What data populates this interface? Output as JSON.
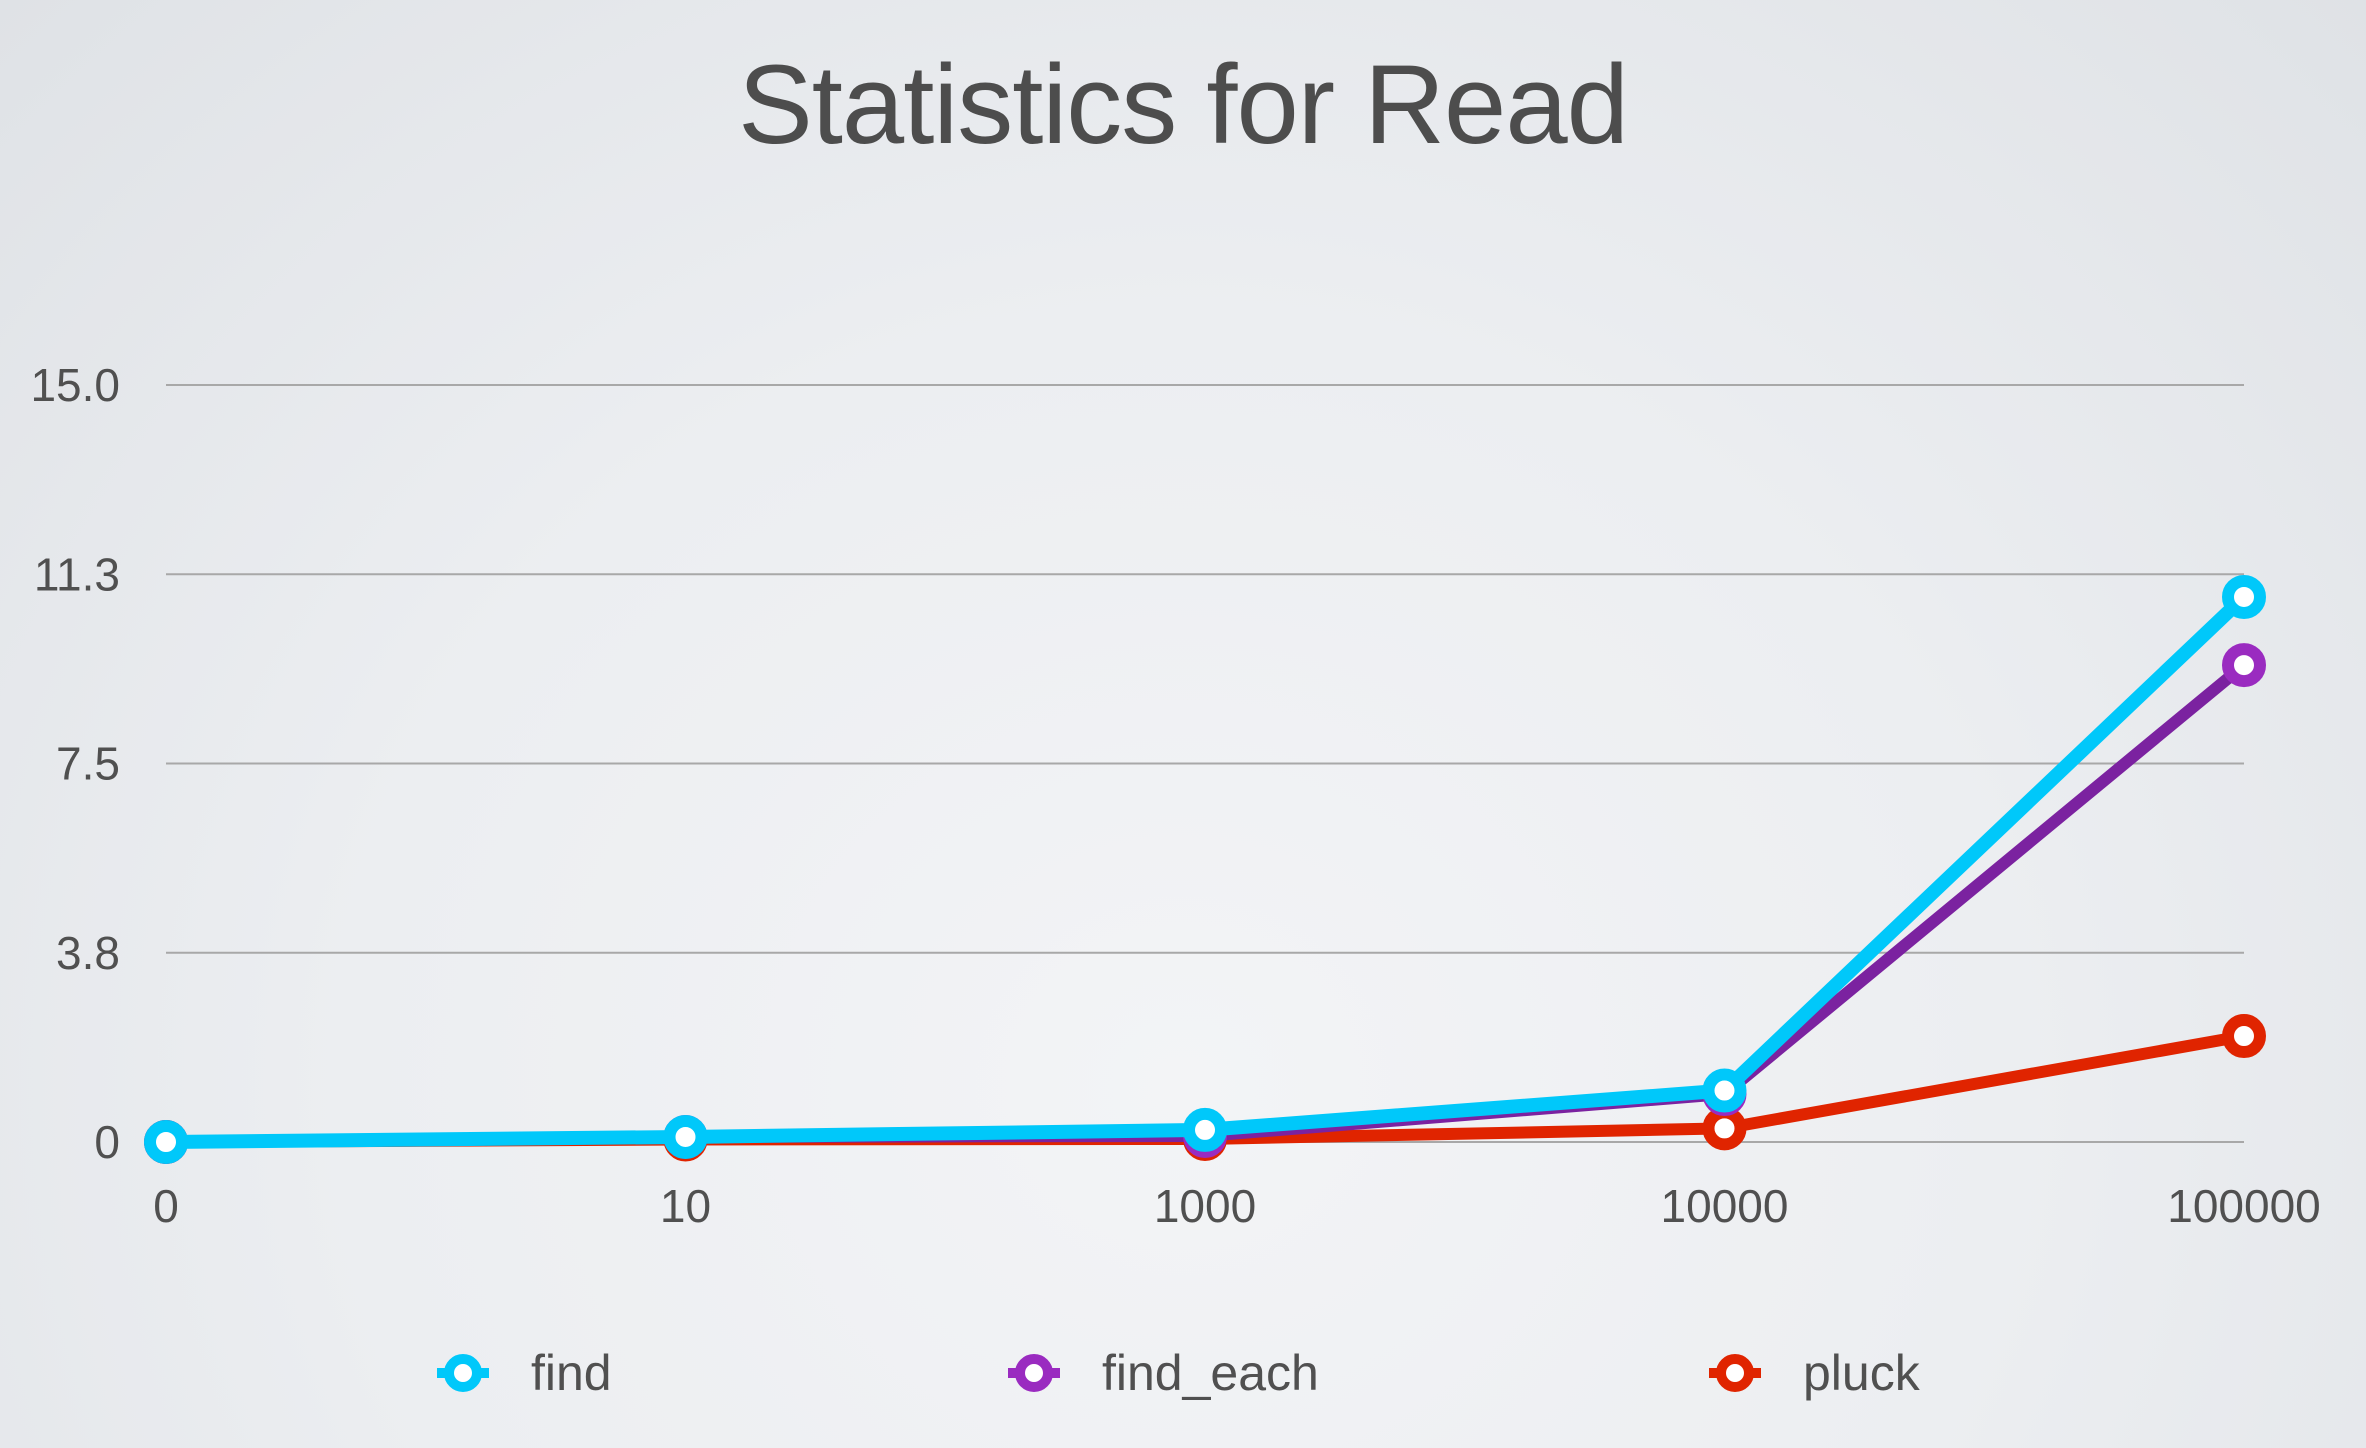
{
  "chart_data": {
    "type": "line",
    "title": "Statistics for Read",
    "xlabel": "",
    "ylabel": "",
    "categories": [
      "0",
      "10",
      "1000",
      "10000",
      "100000"
    ],
    "y_ticks": [
      "0",
      "3.8",
      "7.5",
      "11.3",
      "15.0"
    ],
    "y_tick_values": [
      0,
      3.75,
      7.5,
      11.25,
      15
    ],
    "ylim": [
      0,
      15
    ],
    "grid": true,
    "legend_position": "bottom",
    "series": [
      {
        "name": "find",
        "color": "#00c8fa",
        "values": [
          0,
          0.1,
          0.24,
          1.02,
          10.8
        ]
      },
      {
        "name": "find_each",
        "color": "#7b22a0",
        "marker_color": "#9a2bc0",
        "values": [
          0,
          0.1,
          0.12,
          0.95,
          9.45
        ]
      },
      {
        "name": "pluck",
        "color": "#e02400",
        "values": [
          0,
          0.05,
          0.06,
          0.27,
          2.1
        ]
      }
    ]
  }
}
